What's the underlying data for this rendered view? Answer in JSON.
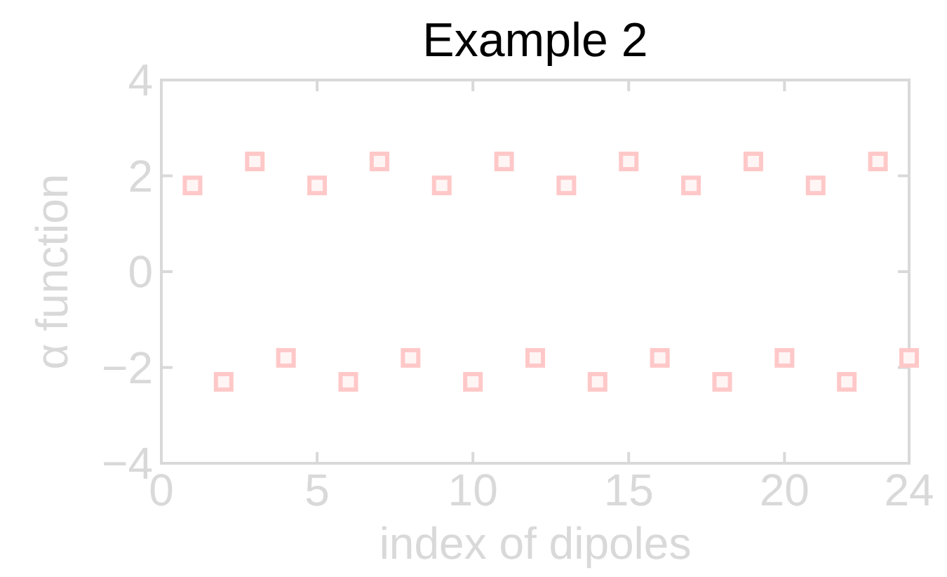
{
  "chart_data": {
    "type": "scatter",
    "title": "Example 2",
    "xlabel": "index of dipoles",
    "ylabel": "α function",
    "x": [
      1,
      2,
      3,
      4,
      5,
      6,
      7,
      8,
      9,
      10,
      11,
      12,
      13,
      14,
      15,
      16,
      17,
      18,
      19,
      20,
      21,
      22,
      23,
      24
    ],
    "values": [
      1.8,
      -2.3,
      2.3,
      -1.8,
      1.8,
      -2.3,
      2.3,
      -1.8,
      1.8,
      -2.3,
      2.3,
      -1.8,
      1.8,
      -2.3,
      2.3,
      -1.8,
      1.8,
      -2.3,
      2.3,
      -1.8,
      1.8,
      -2.3,
      2.3,
      -1.8
    ],
    "color": "#ffc8c8",
    "marker": "square",
    "xlim": [
      0,
      24
    ],
    "ylim": [
      -4,
      4
    ],
    "xticks": [
      0,
      5,
      10,
      15,
      20,
      24
    ],
    "yticks": [
      -4,
      -2,
      0,
      2,
      4
    ],
    "grid": false
  }
}
